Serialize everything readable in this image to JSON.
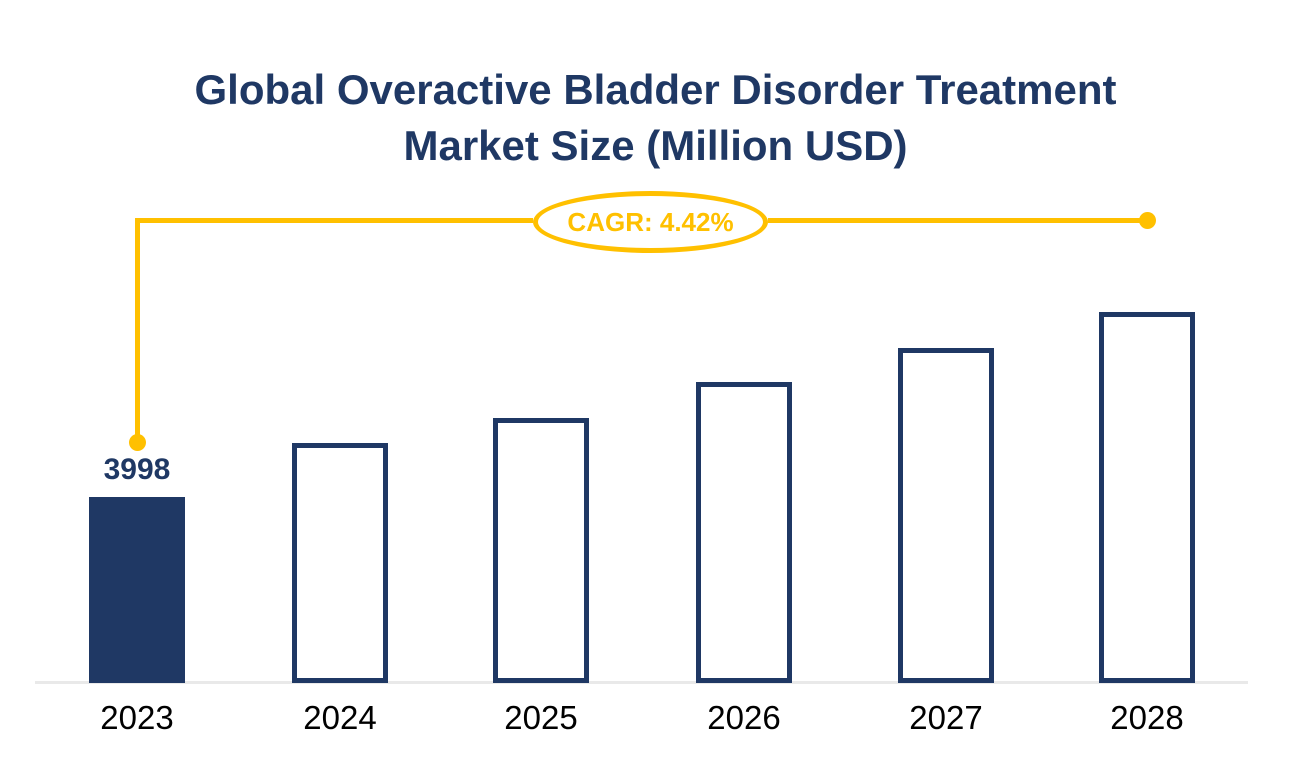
{
  "title": {
    "line1": "Global Overactive Bladder Disorder Treatment",
    "line2": "Market Size (Million USD)",
    "color": "#1F3864"
  },
  "annotation": {
    "label": "CAGR: 4.42%",
    "color": "#FFC000"
  },
  "colors": {
    "navy": "#1F3864",
    "gold": "#FFC000",
    "axis_line": "#E9E9E9",
    "year_label": "#000000",
    "background": "#FFFFFF"
  },
  "chart_data": {
    "type": "bar",
    "title": "Global Overactive Bladder Disorder Treatment Market Size (Million USD)",
    "categories": [
      "2023",
      "2024",
      "2025",
      "2026",
      "2027",
      "2028"
    ],
    "series": [
      {
        "name": "Market Size (Million USD)",
        "values": [
          3998,
          4280,
          4410,
          4600,
          4775,
          4963
        ]
      }
    ],
    "labeled_values": {
      "2023": "3998"
    },
    "annotation": "CAGR: 4.42%",
    "cagr_percent": 4.42,
    "bar_fill_styles": [
      "solid",
      "outline",
      "outline",
      "outline",
      "outline",
      "outline"
    ],
    "xlabel": "",
    "ylabel": "",
    "ylim": [
      3028,
      5100
    ],
    "grid": false,
    "legend": "none",
    "y_axis_visible": false
  }
}
